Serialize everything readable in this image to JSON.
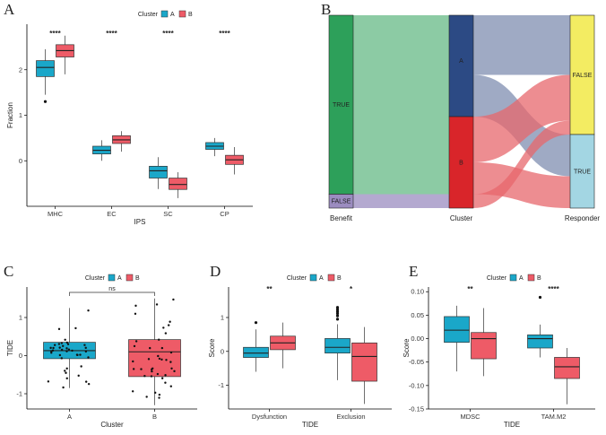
{
  "colors": {
    "A": "#1aa7c9",
    "B": "#ee5b67",
    "benefit_true": "#2da05a",
    "benefit_false": "#9b8cc0",
    "cluster_A": "#2c4a84",
    "cluster_B": "#d9252a",
    "resp_false": "#f3ec62",
    "resp_true": "#a3d6e3"
  },
  "chart_data": [
    {
      "id": "A",
      "type": "boxplot",
      "panel_label": "A",
      "legend": {
        "title": "Cluster",
        "entries": [
          "A",
          "B"
        ],
        "placement": "top"
      },
      "xlabel": "IPS",
      "ylabel": "Fraction",
      "ylim": [
        -1.0,
        3.0
      ],
      "yticks": [
        0,
        1,
        2
      ],
      "categories": [
        "MHC",
        "EC",
        "SC",
        "CP"
      ],
      "significance": [
        "****",
        "****",
        "****",
        "****"
      ],
      "groups": [
        {
          "category": "MHC",
          "cluster": "A",
          "min": 1.45,
          "q1": 1.85,
          "median": 2.05,
          "q3": 2.2,
          "max": 2.45,
          "outliers": [
            1.3
          ]
        },
        {
          "category": "MHC",
          "cluster": "B",
          "min": 1.9,
          "q1": 2.28,
          "median": 2.42,
          "q3": 2.55,
          "max": 2.75,
          "outliers": []
        },
        {
          "category": "EC",
          "cluster": "A",
          "min": 0.0,
          "q1": 0.15,
          "median": 0.23,
          "q3": 0.32,
          "max": 0.45,
          "outliers": []
        },
        {
          "category": "EC",
          "cluster": "B",
          "min": 0.2,
          "q1": 0.38,
          "median": 0.46,
          "q3": 0.55,
          "max": 0.65,
          "outliers": []
        },
        {
          "category": "SC",
          "cluster": "A",
          "min": -0.62,
          "q1": -0.38,
          "median": -0.22,
          "q3": -0.12,
          "max": 0.08,
          "outliers": []
        },
        {
          "category": "SC",
          "cluster": "B",
          "min": -0.82,
          "q1": -0.63,
          "median": -0.52,
          "q3": -0.38,
          "max": -0.25,
          "outliers": []
        },
        {
          "category": "CP",
          "cluster": "A",
          "min": 0.1,
          "q1": 0.25,
          "median": 0.32,
          "q3": 0.4,
          "max": 0.5,
          "outliers": []
        },
        {
          "category": "CP",
          "cluster": "B",
          "min": -0.3,
          "q1": -0.08,
          "median": 0.02,
          "q3": 0.12,
          "max": 0.3,
          "outliers": []
        }
      ]
    },
    {
      "id": "B",
      "type": "alluvial",
      "panel_label": "B",
      "axes": [
        "Benefit",
        "Cluster",
        "Responder"
      ],
      "nodes": {
        "Benefit": [
          {
            "name": "TRUE",
            "value": 90
          },
          {
            "name": "FALSE",
            "value": 7
          }
        ],
        "Cluster": [
          {
            "name": "A",
            "value": 51
          },
          {
            "name": "B",
            "value": 46
          }
        ],
        "Responder": [
          {
            "name": "FALSE",
            "value": 60
          },
          {
            "name": "TRUE",
            "value": 37
          }
        ]
      },
      "flows": [
        {
          "benefit": "TRUE",
          "cluster": "A",
          "responder": "FALSE",
          "value": 30,
          "color": "cluster_A"
        },
        {
          "benefit": "TRUE",
          "cluster": "A",
          "responder": "TRUE",
          "value": 21,
          "color": "cluster_A"
        },
        {
          "benefit": "TRUE",
          "cluster": "B",
          "responder": "FALSE",
          "value": 23,
          "color": "cluster_B"
        },
        {
          "benefit": "TRUE",
          "cluster": "B",
          "responder": "TRUE",
          "value": 16,
          "color": "cluster_B"
        },
        {
          "benefit": "FALSE",
          "cluster": "B",
          "responder": "FALSE",
          "value": 7,
          "color": "cluster_B"
        }
      ]
    },
    {
      "id": "C",
      "type": "boxplot",
      "panel_label": "C",
      "legend": {
        "title": "Cluster",
        "entries": [
          "A",
          "B"
        ],
        "placement": "top"
      },
      "xlabel": "Cluster",
      "ylabel": "TIDE",
      "ylim": [
        -1.4,
        1.8
      ],
      "yticks": [
        -1,
        0,
        1
      ],
      "categories": [
        "A",
        "B"
      ],
      "significance_bracket": "ns",
      "groups": [
        {
          "category": "A",
          "cluster": "A",
          "min": -0.85,
          "q1": -0.08,
          "median": 0.13,
          "q3": 0.35,
          "max": 1.25,
          "outliers": [],
          "jitter_count": 40
        },
        {
          "category": "B",
          "cluster": "B",
          "min": -1.3,
          "q1": -0.55,
          "median": 0.1,
          "q3": 0.42,
          "max": 1.5,
          "outliers": [],
          "jitter_count": 40
        }
      ]
    },
    {
      "id": "D",
      "type": "boxplot",
      "panel_label": "D",
      "legend": {
        "title": "Cluster",
        "entries": [
          "A",
          "B"
        ],
        "placement": "top"
      },
      "xlabel": "TIDE",
      "ylabel": "Score",
      "ylim": [
        -1.7,
        1.9
      ],
      "yticks": [
        -1,
        0,
        1
      ],
      "categories": [
        "Dysfunction",
        "Exclusion"
      ],
      "significance": [
        "**",
        "*"
      ],
      "groups": [
        {
          "category": "Dysfunction",
          "cluster": "A",
          "min": -0.6,
          "q1": -0.18,
          "median": -0.05,
          "q3": 0.12,
          "max": 0.65,
          "outliers": [
            0.85
          ]
        },
        {
          "category": "Dysfunction",
          "cluster": "B",
          "min": -0.5,
          "q1": 0.05,
          "median": 0.25,
          "q3": 0.45,
          "max": 0.85,
          "outliers": []
        },
        {
          "category": "Exclusion",
          "cluster": "A",
          "min": -0.85,
          "q1": -0.05,
          "median": 0.12,
          "q3": 0.38,
          "max": 0.8,
          "outliers": [
            0.95,
            1.05,
            1.12,
            1.18,
            1.24,
            1.3
          ]
        },
        {
          "category": "Exclusion",
          "cluster": "B",
          "min": -1.55,
          "q1": -0.88,
          "median": -0.15,
          "q3": 0.25,
          "max": 0.72,
          "outliers": []
        }
      ]
    },
    {
      "id": "E",
      "type": "boxplot",
      "panel_label": "E",
      "legend": {
        "title": "Cluster",
        "entries": [
          "A",
          "B"
        ],
        "placement": "top"
      },
      "xlabel": "TIDE",
      "ylabel": "Score",
      "ylim": [
        -0.15,
        0.11
      ],
      "yticks": [
        -0.15,
        -0.1,
        -0.05,
        0.0,
        0.05,
        0.1
      ],
      "ytick_labels": [
        "-0.15",
        "-0.10",
        "-0.05",
        "0.00",
        "0.05",
        "0.10"
      ],
      "categories": [
        "MDSC",
        "TAM.M2"
      ],
      "significance": [
        "**",
        "****"
      ],
      "groups": [
        {
          "category": "MDSC",
          "cluster": "A",
          "min": -0.07,
          "q1": -0.008,
          "median": 0.018,
          "q3": 0.047,
          "max": 0.07,
          "outliers": []
        },
        {
          "category": "MDSC",
          "cluster": "B",
          "min": -0.08,
          "q1": -0.043,
          "median": 0.0,
          "q3": 0.013,
          "max": 0.065,
          "outliers": []
        },
        {
          "category": "TAM.M2",
          "cluster": "A",
          "min": -0.04,
          "q1": -0.02,
          "median": 0.0,
          "q3": 0.008,
          "max": 0.03,
          "outliers": [
            0.088
          ]
        },
        {
          "category": "TAM.M2",
          "cluster": "B",
          "min": -0.14,
          "q1": -0.085,
          "median": -0.06,
          "q3": -0.04,
          "max": -0.02,
          "outliers": []
        }
      ]
    }
  ]
}
